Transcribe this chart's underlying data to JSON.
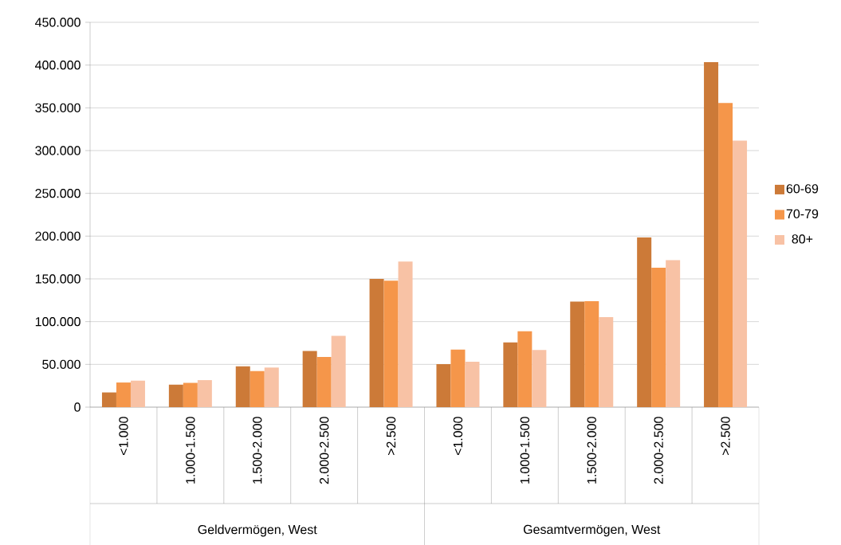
{
  "chart_data": {
    "type": "bar",
    "categories": [
      "<1.000",
      "1.000-1.500",
      "1.500-2.000",
      "2.000-2.500",
      ">2.500",
      "<1.000",
      "1.000-1.500",
      "1.500-2.000",
      "2.000-2.500",
      ">2.500"
    ],
    "series": [
      {
        "name": "60-69",
        "color": "#cc7a38",
        "values": [
          17200,
          26300,
          47800,
          65600,
          150000,
          50300,
          75600,
          123400,
          198400,
          403400
        ]
      },
      {
        "name": "70-79",
        "color": "#f5964a",
        "values": [
          28800,
          28400,
          42200,
          58800,
          147800,
          67200,
          88800,
          123800,
          163100,
          355600
        ]
      },
      {
        "name": "80+",
        "color": "#f8c2a5",
        "values": [
          31000,
          31600,
          46300,
          83400,
          170300,
          53100,
          66900,
          105300,
          171900,
          311600
        ]
      }
    ],
    "ylim": [
      0,
      450000
    ],
    "yticks": [
      {
        "value": 0,
        "label": "0"
      },
      {
        "value": 50000,
        "label": "50.000"
      },
      {
        "value": 100000,
        "label": "100.000"
      },
      {
        "value": 150000,
        "label": "150.000"
      },
      {
        "value": 200000,
        "label": "200.000"
      },
      {
        "value": 250000,
        "label": "250.000"
      },
      {
        "value": 300000,
        "label": "300.000"
      },
      {
        "value": 350000,
        "label": "350.000"
      },
      {
        "value": 400000,
        "label": "400.000"
      },
      {
        "value": 450000,
        "label": "450.000"
      }
    ],
    "annotations": [
      "Geldvermögen, West",
      "Gesamtvermögen, West"
    ],
    "grid": "y",
    "legend": "right"
  }
}
